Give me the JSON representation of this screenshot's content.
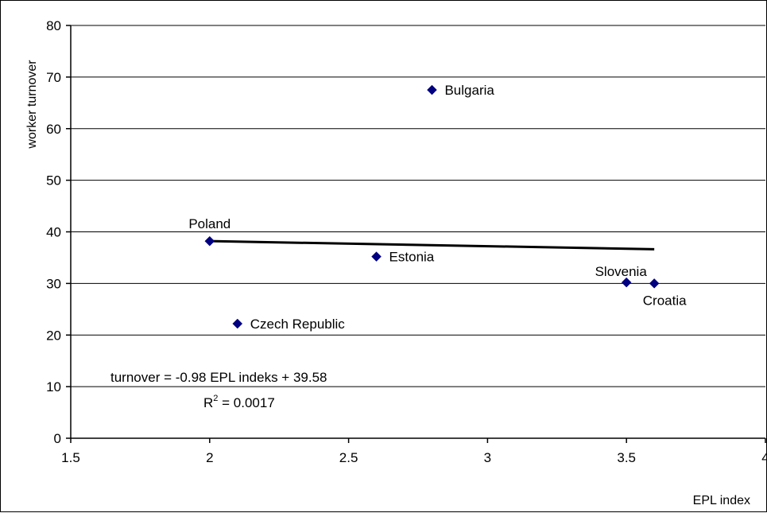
{
  "chart_data": {
    "type": "scatter",
    "title": "",
    "xlabel": "EPL index",
    "ylabel": "worker turnover",
    "xlim": [
      1.5,
      4
    ],
    "ylim": [
      0,
      80
    ],
    "x_ticks": [
      "1.5",
      "2",
      "2.5",
      "3",
      "3.5",
      "4"
    ],
    "y_ticks": [
      "0",
      "10",
      "20",
      "30",
      "40",
      "50",
      "60",
      "70",
      "80"
    ],
    "grid": "horizontal",
    "marker": "diamond",
    "marker_color": "#000080",
    "points": [
      {
        "label": "Poland",
        "x": 2.0,
        "y": 38.2
      },
      {
        "label": "Czech Republic",
        "x": 2.1,
        "y": 22.2
      },
      {
        "label": "Estonia",
        "x": 2.6,
        "y": 35.2
      },
      {
        "label": "Bulgaria",
        "x": 2.8,
        "y": 67.5
      },
      {
        "label": "Slovenia",
        "x": 3.5,
        "y": 30.2
      },
      {
        "label": "Croatia",
        "x": 3.6,
        "y": 30.0
      }
    ],
    "trendline": {
      "slope": -0.98,
      "intercept": 39.58,
      "x_range": [
        2.0,
        3.6
      ],
      "equation": "turnover = -0.98 EPL indeks + 39.58",
      "r2_label": "R",
      "r2_exp": "2",
      "r2_value": " = 0.0017"
    }
  }
}
